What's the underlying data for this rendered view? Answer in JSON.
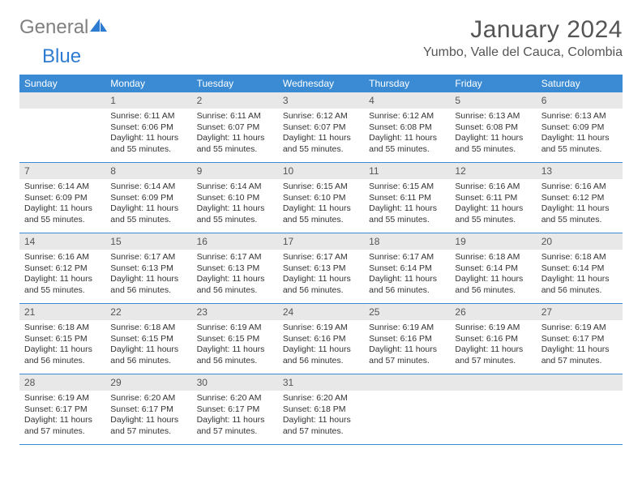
{
  "brand": {
    "part1": "General",
    "part2": "Blue"
  },
  "title": "January 2024",
  "location": "Yumbo, Valle del Cauca, Colombia",
  "colors": {
    "header_bg": "#3b8bd4",
    "header_text": "#ffffff",
    "daynum_bg": "#e8e8e8",
    "brand_gray": "#808080",
    "brand_blue": "#2e7cd1",
    "border": "#3b8bd4"
  },
  "typography": {
    "title_size": 30,
    "location_size": 16,
    "day_header_size": 12,
    "cell_text_size": 10.5
  },
  "day_headers": [
    "Sunday",
    "Monday",
    "Tuesday",
    "Wednesday",
    "Thursday",
    "Friday",
    "Saturday"
  ],
  "weeks": [
    [
      {
        "n": "",
        "sunrise": "",
        "sunset": "",
        "daylight": ""
      },
      {
        "n": "1",
        "sunrise": "Sunrise: 6:11 AM",
        "sunset": "Sunset: 6:06 PM",
        "daylight": "Daylight: 11 hours and 55 minutes."
      },
      {
        "n": "2",
        "sunrise": "Sunrise: 6:11 AM",
        "sunset": "Sunset: 6:07 PM",
        "daylight": "Daylight: 11 hours and 55 minutes."
      },
      {
        "n": "3",
        "sunrise": "Sunrise: 6:12 AM",
        "sunset": "Sunset: 6:07 PM",
        "daylight": "Daylight: 11 hours and 55 minutes."
      },
      {
        "n": "4",
        "sunrise": "Sunrise: 6:12 AM",
        "sunset": "Sunset: 6:08 PM",
        "daylight": "Daylight: 11 hours and 55 minutes."
      },
      {
        "n": "5",
        "sunrise": "Sunrise: 6:13 AM",
        "sunset": "Sunset: 6:08 PM",
        "daylight": "Daylight: 11 hours and 55 minutes."
      },
      {
        "n": "6",
        "sunrise": "Sunrise: 6:13 AM",
        "sunset": "Sunset: 6:09 PM",
        "daylight": "Daylight: 11 hours and 55 minutes."
      }
    ],
    [
      {
        "n": "7",
        "sunrise": "Sunrise: 6:14 AM",
        "sunset": "Sunset: 6:09 PM",
        "daylight": "Daylight: 11 hours and 55 minutes."
      },
      {
        "n": "8",
        "sunrise": "Sunrise: 6:14 AM",
        "sunset": "Sunset: 6:09 PM",
        "daylight": "Daylight: 11 hours and 55 minutes."
      },
      {
        "n": "9",
        "sunrise": "Sunrise: 6:14 AM",
        "sunset": "Sunset: 6:10 PM",
        "daylight": "Daylight: 11 hours and 55 minutes."
      },
      {
        "n": "10",
        "sunrise": "Sunrise: 6:15 AM",
        "sunset": "Sunset: 6:10 PM",
        "daylight": "Daylight: 11 hours and 55 minutes."
      },
      {
        "n": "11",
        "sunrise": "Sunrise: 6:15 AM",
        "sunset": "Sunset: 6:11 PM",
        "daylight": "Daylight: 11 hours and 55 minutes."
      },
      {
        "n": "12",
        "sunrise": "Sunrise: 6:16 AM",
        "sunset": "Sunset: 6:11 PM",
        "daylight": "Daylight: 11 hours and 55 minutes."
      },
      {
        "n": "13",
        "sunrise": "Sunrise: 6:16 AM",
        "sunset": "Sunset: 6:12 PM",
        "daylight": "Daylight: 11 hours and 55 minutes."
      }
    ],
    [
      {
        "n": "14",
        "sunrise": "Sunrise: 6:16 AM",
        "sunset": "Sunset: 6:12 PM",
        "daylight": "Daylight: 11 hours and 55 minutes."
      },
      {
        "n": "15",
        "sunrise": "Sunrise: 6:17 AM",
        "sunset": "Sunset: 6:13 PM",
        "daylight": "Daylight: 11 hours and 56 minutes."
      },
      {
        "n": "16",
        "sunrise": "Sunrise: 6:17 AM",
        "sunset": "Sunset: 6:13 PM",
        "daylight": "Daylight: 11 hours and 56 minutes."
      },
      {
        "n": "17",
        "sunrise": "Sunrise: 6:17 AM",
        "sunset": "Sunset: 6:13 PM",
        "daylight": "Daylight: 11 hours and 56 minutes."
      },
      {
        "n": "18",
        "sunrise": "Sunrise: 6:17 AM",
        "sunset": "Sunset: 6:14 PM",
        "daylight": "Daylight: 11 hours and 56 minutes."
      },
      {
        "n": "19",
        "sunrise": "Sunrise: 6:18 AM",
        "sunset": "Sunset: 6:14 PM",
        "daylight": "Daylight: 11 hours and 56 minutes."
      },
      {
        "n": "20",
        "sunrise": "Sunrise: 6:18 AM",
        "sunset": "Sunset: 6:14 PM",
        "daylight": "Daylight: 11 hours and 56 minutes."
      }
    ],
    [
      {
        "n": "21",
        "sunrise": "Sunrise: 6:18 AM",
        "sunset": "Sunset: 6:15 PM",
        "daylight": "Daylight: 11 hours and 56 minutes."
      },
      {
        "n": "22",
        "sunrise": "Sunrise: 6:18 AM",
        "sunset": "Sunset: 6:15 PM",
        "daylight": "Daylight: 11 hours and 56 minutes."
      },
      {
        "n": "23",
        "sunrise": "Sunrise: 6:19 AM",
        "sunset": "Sunset: 6:15 PM",
        "daylight": "Daylight: 11 hours and 56 minutes."
      },
      {
        "n": "24",
        "sunrise": "Sunrise: 6:19 AM",
        "sunset": "Sunset: 6:16 PM",
        "daylight": "Daylight: 11 hours and 56 minutes."
      },
      {
        "n": "25",
        "sunrise": "Sunrise: 6:19 AM",
        "sunset": "Sunset: 6:16 PM",
        "daylight": "Daylight: 11 hours and 57 minutes."
      },
      {
        "n": "26",
        "sunrise": "Sunrise: 6:19 AM",
        "sunset": "Sunset: 6:16 PM",
        "daylight": "Daylight: 11 hours and 57 minutes."
      },
      {
        "n": "27",
        "sunrise": "Sunrise: 6:19 AM",
        "sunset": "Sunset: 6:17 PM",
        "daylight": "Daylight: 11 hours and 57 minutes."
      }
    ],
    [
      {
        "n": "28",
        "sunrise": "Sunrise: 6:19 AM",
        "sunset": "Sunset: 6:17 PM",
        "daylight": "Daylight: 11 hours and 57 minutes."
      },
      {
        "n": "29",
        "sunrise": "Sunrise: 6:20 AM",
        "sunset": "Sunset: 6:17 PM",
        "daylight": "Daylight: 11 hours and 57 minutes."
      },
      {
        "n": "30",
        "sunrise": "Sunrise: 6:20 AM",
        "sunset": "Sunset: 6:17 PM",
        "daylight": "Daylight: 11 hours and 57 minutes."
      },
      {
        "n": "31",
        "sunrise": "Sunrise: 6:20 AM",
        "sunset": "Sunset: 6:18 PM",
        "daylight": "Daylight: 11 hours and 57 minutes."
      },
      {
        "n": "",
        "sunrise": "",
        "sunset": "",
        "daylight": ""
      },
      {
        "n": "",
        "sunrise": "",
        "sunset": "",
        "daylight": ""
      },
      {
        "n": "",
        "sunrise": "",
        "sunset": "",
        "daylight": ""
      }
    ]
  ]
}
